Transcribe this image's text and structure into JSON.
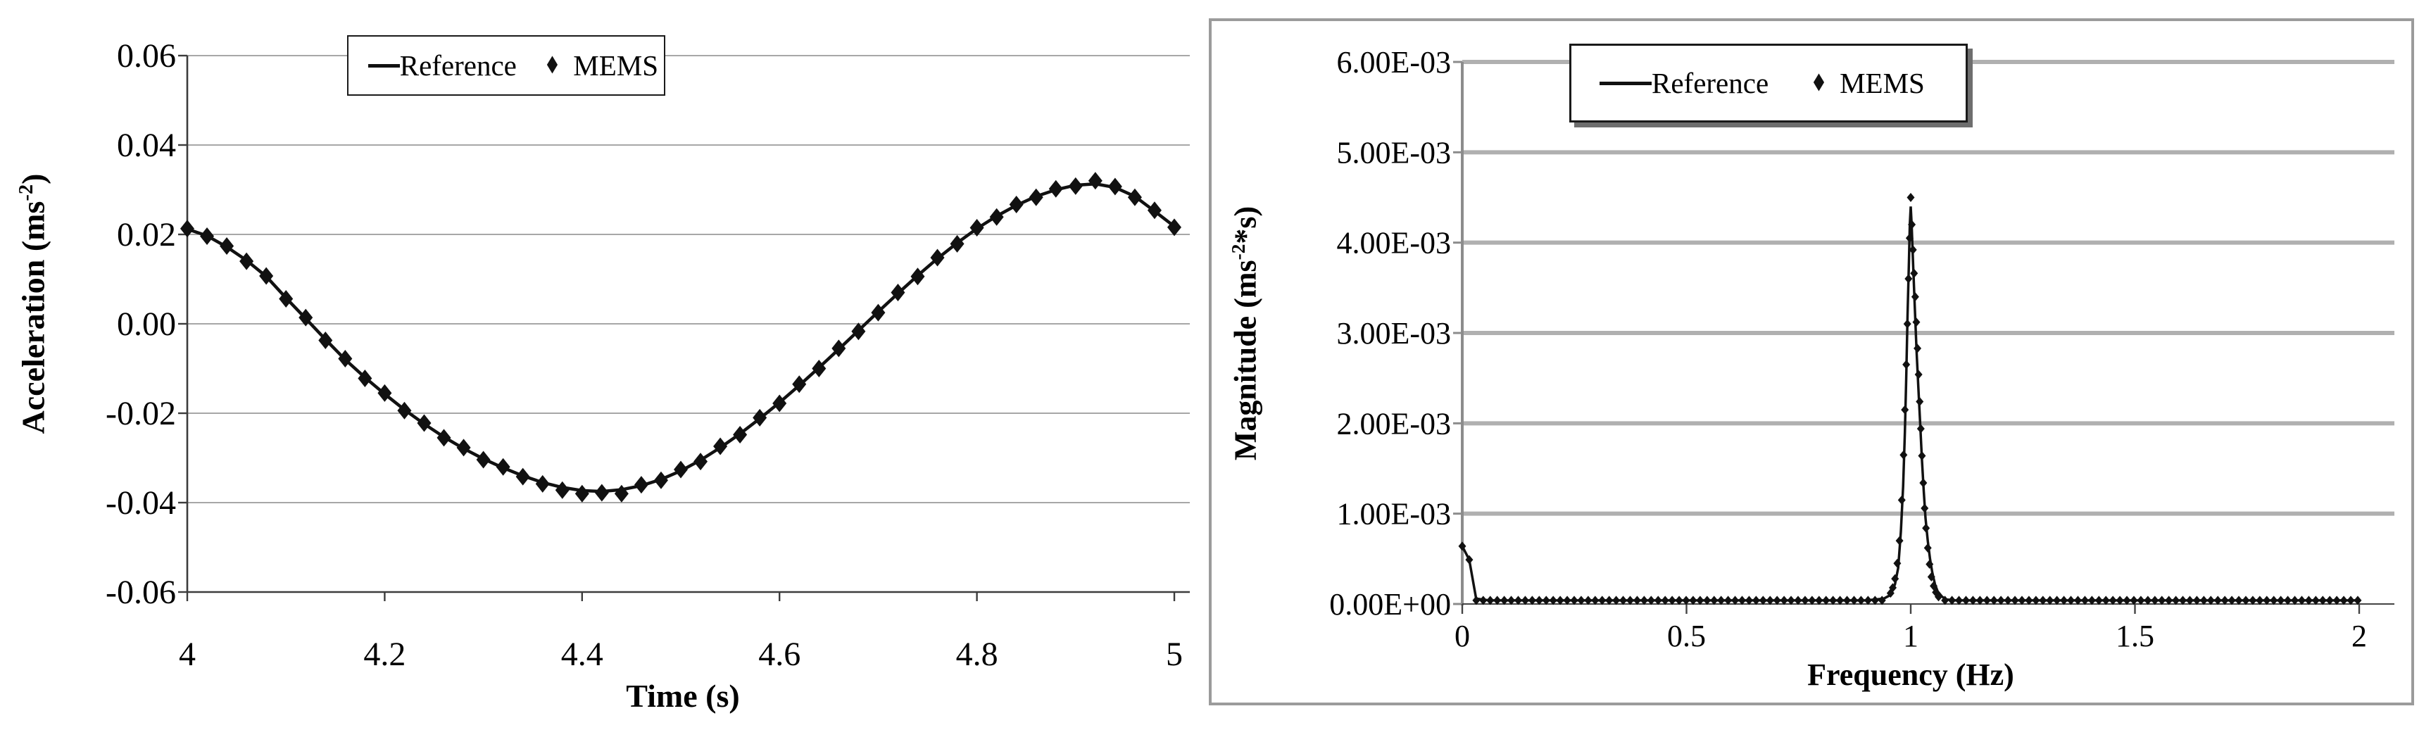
{
  "icons": {
    "diamond": "♦"
  },
  "colors": {
    "background": "#ffffff",
    "series": "#111111",
    "grid_left": "#8a8a8a",
    "grid_right": "#b0b0b0",
    "axis_left": "#3c3c3c",
    "axis_right": "#8c8c8c",
    "figure_border": "#9b9b9b",
    "legend_border": "#1a1a1a",
    "legend_shadow": "#6e6e6e"
  },
  "charts": [
    {
      "id": "time-series",
      "legend": {
        "reference_label": "Reference",
        "mems_label": "MEMS"
      },
      "y_axis": {
        "title_pre": "Acceleration  (ms",
        "title_sup": "-2",
        "title_post": ")"
      },
      "x_axis": {
        "title": "Time (s)"
      }
    },
    {
      "id": "spectrum",
      "legend": {
        "reference_label": "Reference",
        "mems_label": "MEMS"
      },
      "y_axis": {
        "title_pre": "Magnitude (ms",
        "title_sup": "-2",
        "title_post": "*s)"
      },
      "x_axis": {
        "title": "Frequency (Hz)"
      }
    }
  ],
  "chart_data": [
    {
      "type": "line+scatter",
      "xlabel": "Time (s)",
      "ylabel": "Acceleration (ms^-2)",
      "xlim": [
        4,
        5
      ],
      "ylim": [
        -0.06,
        0.06
      ],
      "grid": "horizontal",
      "legend_position": "top-center",
      "x_ticks": [
        {
          "label": "4",
          "v": 4
        },
        {
          "label": "4.2",
          "v": 4.2
        },
        {
          "label": "4.4",
          "v": 4.4
        },
        {
          "label": "4.6",
          "v": 4.6
        },
        {
          "label": "4.8",
          "v": 4.8
        },
        {
          "label": "5",
          "v": 5
        }
      ],
      "y_ticks": [
        {
          "label": "0.06",
          "v": 0.06
        },
        {
          "label": "0.04",
          "v": 0.04
        },
        {
          "label": "0.02",
          "v": 0.02
        },
        {
          "label": "0.00",
          "v": 0.0
        },
        {
          "label": "-0.02",
          "v": -0.02
        },
        {
          "label": "-0.04",
          "v": -0.04
        },
        {
          "label": "-0.06",
          "v": -0.06
        }
      ],
      "x_start": 4.0,
      "x_step": 0.02,
      "series": [
        {
          "name": "Reference",
          "style": "line",
          "values": [
            0.0212,
            0.0197,
            0.0172,
            0.0142,
            0.0106,
            0.0058,
            0.0012,
            -0.0035,
            -0.008,
            -0.012,
            -0.0157,
            -0.0192,
            -0.0224,
            -0.0253,
            -0.0279,
            -0.0302,
            -0.0322,
            -0.034,
            -0.0355,
            -0.0366,
            -0.0373,
            -0.0375,
            -0.0371,
            -0.0362,
            -0.0348,
            -0.0329,
            -0.0305,
            -0.0277,
            -0.0246,
            -0.0212,
            -0.0176,
            -0.0138,
            -0.0098,
            -0.0057,
            -0.0015,
            0.0027,
            0.0068,
            0.0108,
            0.0146,
            0.0181,
            0.0213,
            0.0241,
            0.0265,
            0.0285,
            0.03,
            0.031,
            0.0313,
            0.0305,
            0.0285,
            0.0252,
            0.0218
          ]
        },
        {
          "name": "MEMS",
          "style": "scatter",
          "values": [
            0.0213,
            0.0196,
            0.0174,
            0.014,
            0.0107,
            0.0056,
            0.0014,
            -0.0037,
            -0.0078,
            -0.0122,
            -0.0155,
            -0.0194,
            -0.0222,
            -0.0255,
            -0.0277,
            -0.0304,
            -0.032,
            -0.0342,
            -0.0358,
            -0.0372,
            -0.038,
            -0.0378,
            -0.038,
            -0.036,
            -0.035,
            -0.0326,
            -0.0308,
            -0.0274,
            -0.0248,
            -0.021,
            -0.0178,
            -0.0135,
            -0.01,
            -0.0055,
            -0.0017,
            0.0025,
            0.007,
            0.0106,
            0.0148,
            0.0179,
            0.0215,
            0.0239,
            0.0267,
            0.0283,
            0.0302,
            0.0308,
            0.032,
            0.0307,
            0.0283,
            0.0254,
            0.0216
          ]
        }
      ]
    },
    {
      "type": "line+scatter",
      "xlabel": "Frequency (Hz)",
      "ylabel": "Magnitude (ms^-2*s)",
      "xlim": [
        0,
        2
      ],
      "ylim": [
        0,
        0.006
      ],
      "grid": "horizontal",
      "legend_position": "top-center",
      "x_ticks": [
        {
          "label": "0",
          "v": 0
        },
        {
          "label": "0.5",
          "v": 0.5
        },
        {
          "label": "1",
          "v": 1
        },
        {
          "label": "1.5",
          "v": 1.5
        },
        {
          "label": "2",
          "v": 2
        }
      ],
      "y_ticks": [
        {
          "label": "6.00E-03",
          "v": 0.006
        },
        {
          "label": "5.00E-03",
          "v": 0.005
        },
        {
          "label": "4.00E-03",
          "v": 0.004
        },
        {
          "label": "3.00E-03",
          "v": 0.003
        },
        {
          "label": "2.00E-03",
          "v": 0.002
        },
        {
          "label": "1.00E-03",
          "v": 0.001
        },
        {
          "label": "0.00E+00",
          "v": 0.0
        }
      ],
      "series": [
        {
          "name": "Reference",
          "style": "line",
          "points": [
            [
              0,
              0.00064
            ],
            [
              0.0156,
              0.00049
            ],
            [
              0.031,
              6e-05
            ],
            [
              0.06,
              4e-05
            ],
            [
              0.5,
              4e-05
            ],
            [
              0.9,
              4e-05
            ],
            [
              0.94,
              6e-05
            ],
            [
              0.955,
              0.0001
            ],
            [
              0.965,
              0.00022
            ],
            [
              0.972,
              0.0004
            ],
            [
              0.978,
              0.0008
            ],
            [
              0.983,
              0.0013
            ],
            [
              0.987,
              0.0019
            ],
            [
              0.99,
              0.0025
            ],
            [
              0.993,
              0.0032
            ],
            [
              0.996,
              0.0038
            ],
            [
              0.998,
              0.0042
            ],
            [
              1.0,
              0.0044
            ],
            [
              1.002,
              0.0042
            ],
            [
              1.005,
              0.0038
            ],
            [
              1.009,
              0.0033
            ],
            [
              1.013,
              0.0028
            ],
            [
              1.017,
              0.0024
            ],
            [
              1.021,
              0.002
            ],
            [
              1.025,
              0.0016
            ],
            [
              1.029,
              0.00125
            ],
            [
              1.033,
              0.00095
            ],
            [
              1.038,
              0.0007
            ],
            [
              1.043,
              0.0005
            ],
            [
              1.048,
              0.00035
            ],
            [
              1.054,
              0.00022
            ],
            [
              1.06,
              0.00014
            ],
            [
              1.07,
              8e-05
            ],
            [
              1.08,
              5e-05
            ],
            [
              1.1,
              4e-05
            ],
            [
              1.5,
              4e-05
            ],
            [
              2,
              4e-05
            ]
          ]
        },
        {
          "name": "MEMS",
          "style": "scatter",
          "points_head": [
            [
              0,
              0.00064
            ],
            [
              0.0156,
              0.00049
            ]
          ],
          "baseline": {
            "start": 0.0312,
            "end": 2.0,
            "step": 0.0156,
            "value": 4e-05,
            "skip_from": 0.948,
            "skip_to": 1.068
          },
          "points_peak": [
            [
              0.955,
              0.00012
            ],
            [
              0.96,
              0.00018
            ],
            [
              0.965,
              0.00028
            ],
            [
              0.97,
              0.00045
            ],
            [
              0.975,
              0.0007
            ],
            [
              0.98,
              0.00115
            ],
            [
              0.984,
              0.00165
            ],
            [
              0.987,
              0.00215
            ],
            [
              0.99,
              0.00265
            ],
            [
              0.9925,
              0.0031
            ],
            [
              0.995,
              0.0036
            ],
            [
              0.9975,
              0.00405
            ],
            [
              1.0,
              0.0045
            ],
            [
              1.0025,
              0.0042
            ],
            [
              1.005,
              0.00392
            ],
            [
              1.0075,
              0.00366
            ],
            [
              1.01,
              0.0034
            ],
            [
              1.0125,
              0.00312
            ],
            [
              1.015,
              0.00283
            ],
            [
              1.0175,
              0.00254
            ],
            [
              1.02,
              0.00224
            ],
            [
              1.0225,
              0.00194
            ],
            [
              1.025,
              0.00164
            ],
            [
              1.028,
              0.00134
            ],
            [
              1.031,
              0.00106
            ],
            [
              1.034,
              0.00084
            ],
            [
              1.038,
              0.00062
            ],
            [
              1.042,
              0.00044
            ],
            [
              1.046,
              0.0003
            ],
            [
              1.051,
              0.0002
            ],
            [
              1.056,
              0.00013
            ],
            [
              1.062,
              8e-05
            ]
          ]
        }
      ]
    }
  ]
}
